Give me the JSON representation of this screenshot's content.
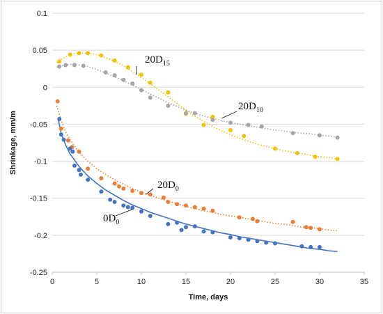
{
  "chart_data": {
    "type": "scatter",
    "xlabel": "Time, days",
    "ylabel": "Shrinkage, mm/m",
    "xlim": [
      0,
      35
    ],
    "ylim": [
      -0.25,
      0.1
    ],
    "x_ticks": [
      "0",
      "5",
      "10",
      "15",
      "20",
      "25",
      "30",
      "35"
    ],
    "y_ticks": [
      "0.1",
      "0.05",
      "0",
      "-0.05",
      "-0.1",
      "-0.15",
      "-0.2",
      "-0.25"
    ],
    "grid": "horizontal",
    "legend": "none",
    "series": [
      {
        "label_base": "20D",
        "label_sub": "15",
        "color": "#F2C200",
        "trend": "dotted",
        "points": [
          [
            0.8,
            0.035
          ],
          [
            2,
            0.044
          ],
          [
            3,
            0.046
          ],
          [
            4,
            0.046
          ],
          [
            5.5,
            0.043
          ],
          [
            7,
            0.036
          ],
          [
            8.5,
            0.027
          ],
          [
            10,
            0.017
          ],
          [
            11,
            0.006
          ],
          [
            13,
            -0.007
          ],
          [
            15,
            -0.036
          ],
          [
            17,
            -0.051
          ],
          [
            18,
            -0.04
          ],
          [
            20,
            -0.058
          ],
          [
            21.5,
            -0.066
          ],
          [
            25,
            -0.083
          ],
          [
            27.5,
            -0.089
          ],
          [
            29.5,
            -0.094
          ],
          [
            32,
            -0.097
          ]
        ],
        "fit": [
          [
            0.5,
            0.033
          ],
          [
            1,
            0.038
          ],
          [
            2,
            0.044
          ],
          [
            3,
            0.046
          ],
          [
            4,
            0.046
          ],
          [
            5,
            0.044
          ],
          [
            6,
            0.04
          ],
          [
            7,
            0.035
          ],
          [
            8,
            0.029
          ],
          [
            9,
            0.021
          ],
          [
            10,
            0.013
          ],
          [
            11,
            0.005
          ],
          [
            12,
            -0.004
          ],
          [
            13,
            -0.013
          ],
          [
            14,
            -0.022
          ],
          [
            15,
            -0.031
          ],
          [
            16,
            -0.039
          ],
          [
            17,
            -0.046
          ],
          [
            18,
            -0.053
          ],
          [
            19,
            -0.059
          ],
          [
            20,
            -0.064
          ],
          [
            21,
            -0.069
          ],
          [
            22,
            -0.073
          ],
          [
            23,
            -0.077
          ],
          [
            24,
            -0.08
          ],
          [
            25,
            -0.083
          ],
          [
            26,
            -0.086
          ],
          [
            27,
            -0.088
          ],
          [
            28,
            -0.09
          ],
          [
            29,
            -0.092
          ],
          [
            30,
            -0.094
          ],
          [
            31,
            -0.095
          ],
          [
            32,
            -0.097
          ]
        ]
      },
      {
        "label_base": "20D",
        "label_sub": "10",
        "color": "#A5A5A5",
        "trend": "dotted",
        "points": [
          [
            0.8,
            0.028
          ],
          [
            1.5,
            0.03
          ],
          [
            2.5,
            0.03
          ],
          [
            3.5,
            0.029
          ],
          [
            6,
            0.02
          ],
          [
            7,
            0.016
          ],
          [
            8,
            0.01
          ],
          [
            9,
            0.005
          ],
          [
            10,
            -0.004
          ],
          [
            11,
            -0.014
          ],
          [
            13,
            -0.025
          ],
          [
            15,
            -0.035
          ],
          [
            16,
            -0.035
          ],
          [
            18,
            -0.044
          ],
          [
            20,
            -0.048
          ],
          [
            22,
            -0.051
          ],
          [
            23.5,
            -0.053
          ],
          [
            27,
            -0.062
          ],
          [
            30,
            -0.065
          ],
          [
            32,
            -0.068
          ]
        ],
        "fit": [
          [
            0.5,
            0.027
          ],
          [
            1,
            0.029
          ],
          [
            2,
            0.031
          ],
          [
            3,
            0.03
          ],
          [
            4,
            0.028
          ],
          [
            5,
            0.024
          ],
          [
            6,
            0.019
          ],
          [
            7,
            0.014
          ],
          [
            8,
            0.009
          ],
          [
            9,
            0.003
          ],
          [
            10,
            -0.003
          ],
          [
            11,
            -0.009
          ],
          [
            12,
            -0.015
          ],
          [
            13,
            -0.021
          ],
          [
            14,
            -0.026
          ],
          [
            15,
            -0.031
          ],
          [
            16,
            -0.035
          ],
          [
            17,
            -0.039
          ],
          [
            18,
            -0.042
          ],
          [
            19,
            -0.045
          ],
          [
            20,
            -0.048
          ],
          [
            21,
            -0.05
          ],
          [
            22,
            -0.052
          ],
          [
            23,
            -0.054
          ],
          [
            24,
            -0.056
          ],
          [
            25,
            -0.058
          ],
          [
            26,
            -0.059
          ],
          [
            27,
            -0.061
          ],
          [
            28,
            -0.062
          ],
          [
            29,
            -0.063
          ],
          [
            30,
            -0.065
          ],
          [
            31,
            -0.066
          ],
          [
            32,
            -0.067
          ]
        ]
      },
      {
        "label_base": "20D",
        "label_sub": "0",
        "color": "#ED7D31",
        "trend": "dotted",
        "points": [
          [
            0.6,
            -0.019
          ],
          [
            1,
            -0.056
          ],
          [
            1.8,
            -0.072
          ],
          [
            2.2,
            -0.081
          ],
          [
            3,
            -0.087
          ],
          [
            4,
            -0.11
          ],
          [
            5.5,
            -0.123
          ],
          [
            7,
            -0.13
          ],
          [
            7.5,
            -0.134
          ],
          [
            8,
            -0.137
          ],
          [
            9,
            -0.14
          ],
          [
            10,
            -0.143
          ],
          [
            11,
            -0.145
          ],
          [
            12.5,
            -0.149
          ],
          [
            13,
            -0.155
          ],
          [
            14,
            -0.158
          ],
          [
            15,
            -0.16
          ],
          [
            16,
            -0.162
          ],
          [
            17,
            -0.164
          ],
          [
            18,
            -0.167
          ],
          [
            21,
            -0.176
          ],
          [
            22.5,
            -0.178
          ],
          [
            23,
            -0.181
          ],
          [
            27,
            -0.182
          ],
          [
            28.5,
            -0.189
          ],
          [
            29,
            -0.19
          ],
          [
            30,
            -0.192
          ]
        ],
        "fit": [
          [
            0.5,
            -0.025
          ],
          [
            1,
            -0.045
          ],
          [
            1.5,
            -0.06
          ],
          [
            2,
            -0.071
          ],
          [
            3,
            -0.088
          ],
          [
            4,
            -0.1
          ],
          [
            5,
            -0.11
          ],
          [
            6,
            -0.118
          ],
          [
            7,
            -0.125
          ],
          [
            8,
            -0.131
          ],
          [
            9,
            -0.137
          ],
          [
            10,
            -0.142
          ],
          [
            11,
            -0.146
          ],
          [
            12,
            -0.15
          ],
          [
            13,
            -0.154
          ],
          [
            14,
            -0.157
          ],
          [
            15,
            -0.161
          ],
          [
            16,
            -0.164
          ],
          [
            17,
            -0.167
          ],
          [
            18,
            -0.169
          ],
          [
            19,
            -0.172
          ],
          [
            20,
            -0.174
          ],
          [
            21,
            -0.176
          ],
          [
            22,
            -0.178
          ],
          [
            23,
            -0.18
          ],
          [
            24,
            -0.182
          ],
          [
            25,
            -0.184
          ],
          [
            26,
            -0.185
          ],
          [
            27,
            -0.187
          ],
          [
            28,
            -0.189
          ],
          [
            29,
            -0.19
          ],
          [
            30,
            -0.191
          ],
          [
            31,
            -0.193
          ],
          [
            32,
            -0.194
          ]
        ]
      },
      {
        "label_base": "0D",
        "label_sub": "0",
        "color": "#4472C4",
        "trend": "solid",
        "points": [
          [
            0.8,
            -0.043
          ],
          [
            1,
            -0.064
          ],
          [
            1.3,
            -0.071
          ],
          [
            2,
            -0.083
          ],
          [
            2.3,
            -0.087
          ],
          [
            2.5,
            -0.106
          ],
          [
            3,
            -0.112
          ],
          [
            3.2,
            -0.118
          ],
          [
            4,
            -0.125
          ],
          [
            5.5,
            -0.141
          ],
          [
            6.5,
            -0.152
          ],
          [
            7,
            -0.155
          ],
          [
            8,
            -0.16
          ],
          [
            8.5,
            -0.162
          ],
          [
            9,
            -0.163
          ],
          [
            10,
            -0.168
          ],
          [
            11,
            -0.174
          ],
          [
            13,
            -0.185
          ],
          [
            14,
            -0.183
          ],
          [
            14.5,
            -0.193
          ],
          [
            15,
            -0.189
          ],
          [
            16,
            -0.188
          ],
          [
            17,
            -0.195
          ],
          [
            18,
            -0.196
          ],
          [
            20,
            -0.203
          ],
          [
            21,
            -0.204
          ],
          [
            22,
            -0.206
          ],
          [
            23,
            -0.208
          ],
          [
            24,
            -0.21
          ],
          [
            25,
            -0.211
          ],
          [
            28,
            -0.215
          ],
          [
            29,
            -0.216
          ],
          [
            30,
            -0.216
          ]
        ],
        "fit": [
          [
            0.7,
            -0.045
          ],
          [
            1,
            -0.062
          ],
          [
            1.5,
            -0.078
          ],
          [
            2,
            -0.09
          ],
          [
            3,
            -0.107
          ],
          [
            4,
            -0.12
          ],
          [
            5,
            -0.13
          ],
          [
            6,
            -0.139
          ],
          [
            7,
            -0.146
          ],
          [
            8,
            -0.153
          ],
          [
            9,
            -0.159
          ],
          [
            10,
            -0.164
          ],
          [
            11,
            -0.169
          ],
          [
            12,
            -0.173
          ],
          [
            13,
            -0.177
          ],
          [
            14,
            -0.181
          ],
          [
            15,
            -0.185
          ],
          [
            16,
            -0.188
          ],
          [
            17,
            -0.191
          ],
          [
            18,
            -0.194
          ],
          [
            19,
            -0.197
          ],
          [
            20,
            -0.199
          ],
          [
            21,
            -0.202
          ],
          [
            22,
            -0.204
          ],
          [
            23,
            -0.206
          ],
          [
            24,
            -0.208
          ],
          [
            25,
            -0.21
          ],
          [
            26,
            -0.212
          ],
          [
            27,
            -0.214
          ],
          [
            28,
            -0.216
          ],
          [
            29,
            -0.218
          ],
          [
            30,
            -0.219
          ],
          [
            31,
            -0.221
          ],
          [
            32,
            -0.222
          ]
        ]
      }
    ],
    "annotations": [
      {
        "series": 0,
        "x": 9.5,
        "y": 0.017,
        "text_base": "20D",
        "text_sub": "15"
      },
      {
        "series": 1,
        "x": 19.0,
        "y": -0.042,
        "text_base": "20D",
        "text_sub": "10"
      },
      {
        "series": 2,
        "x": 10.5,
        "y": -0.145,
        "text_base": "20D",
        "text_sub": "0"
      },
      {
        "series": 3,
        "x": 9.0,
        "y": -0.165,
        "text_base": "0D",
        "text_sub": "0"
      }
    ]
  }
}
